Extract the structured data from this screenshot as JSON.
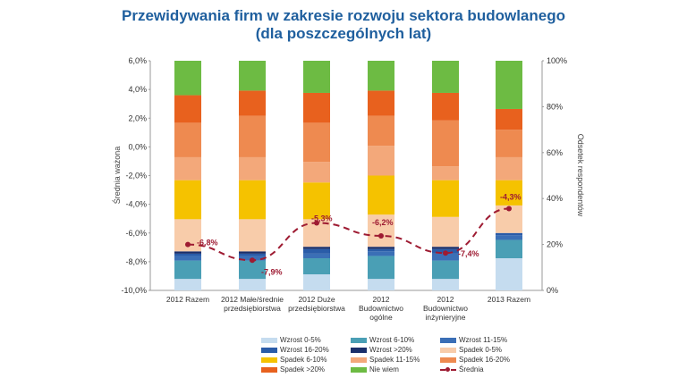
{
  "chart_data": {
    "type": "bar",
    "title_line1": "Przewidywania firm w zakresie rozwoju sektora budowlanego",
    "title_line2": "(dla poszczególnych lat)",
    "ylabel_left": "Średnia ważona",
    "ylabel_right": "Odsetek respondentów",
    "left_ticks": [
      "6,0%",
      "4,0%",
      "2,0%",
      "0,0%",
      "-2,0%",
      "-4,0%",
      "-6,0%",
      "-8,0%",
      "-10,0%"
    ],
    "right_ticks": [
      "100%",
      "80%",
      "60%",
      "40%",
      "20%",
      "0%"
    ],
    "ylim_left": [
      -10,
      6
    ],
    "ylim_right": [
      0,
      100
    ],
    "categories": [
      [
        "2012 Razem"
      ],
      [
        "2012 Małe/średnie",
        "przedsiębiorstwa"
      ],
      [
        "2012 Duże",
        "przedsiębiorstwa"
      ],
      [
        "2012",
        "Budownictwo",
        "ogólne"
      ],
      [
        "2012",
        "Budownictwo",
        "inżynieryjne"
      ],
      [
        "2013 Razem"
      ]
    ],
    "series": [
      {
        "name": "Wzrost 0-5%",
        "color": "#c5dcef",
        "values": [
          5,
          5,
          7,
          5,
          5,
          14
        ]
      },
      {
        "name": "Wzrost 6-10%",
        "color": "#4a9fb5",
        "values": [
          8,
          8,
          7,
          10,
          8,
          8
        ]
      },
      {
        "name": "Wzrost 11-15%",
        "color": "#3b6fb6",
        "values": [
          2,
          2,
          2,
          2,
          3,
          2
        ]
      },
      {
        "name": "Wzrost 16-20%",
        "color": "#2a5ca8",
        "values": [
          1,
          1,
          2,
          1,
          2,
          1
        ]
      },
      {
        "name": "Wzrost >20%",
        "color": "#1a2f6b",
        "values": [
          1,
          1,
          1,
          1,
          1,
          0
        ]
      },
      {
        "name": "Spadek 0-5%",
        "color": "#f8ccaa",
        "values": [
          14,
          14,
          12,
          14,
          13,
          12
        ]
      },
      {
        "name": "Spadek 6-10%",
        "color": "#f5c200",
        "values": [
          17,
          17,
          16,
          17,
          16,
          11
        ]
      },
      {
        "name": "Spadek 11-15%",
        "color": "#f3a87a",
        "values": [
          10,
          10,
          9,
          13,
          6,
          10
        ]
      },
      {
        "name": "Spadek 16-20%",
        "color": "#ee8a50",
        "values": [
          15,
          18,
          17,
          13,
          20,
          12
        ]
      },
      {
        "name": "Spadek >20%",
        "color": "#e8611e",
        "values": [
          12,
          11,
          13,
          11,
          12,
          9
        ]
      },
      {
        "name": "Nie wiem",
        "color": "#6dbb43",
        "values": [
          15,
          13,
          14,
          13,
          14,
          21
        ]
      }
    ],
    "line_series": {
      "name": "Średnia",
      "color": "#9e1b32",
      "values": [
        -6.8,
        -7.9,
        -5.3,
        -6.2,
        -7.4,
        -4.3
      ],
      "labels": [
        "-6,8%",
        "-7,9%",
        "-5,3%",
        "-6,2%",
        "-7,4%",
        "-4,3%"
      ]
    },
    "legend_order": [
      "Wzrost 0-5%",
      "Wzrost 6-10%",
      "Wzrost 11-15%",
      "Wzrost 16-20%",
      "Wzrost >20%",
      "Spadek 0-5%",
      "Spadek 6-10%",
      "Spadek 11-15%",
      "Spadek 16-20%",
      "Spadek >20%",
      "Nie wiem",
      "Średnia"
    ]
  }
}
